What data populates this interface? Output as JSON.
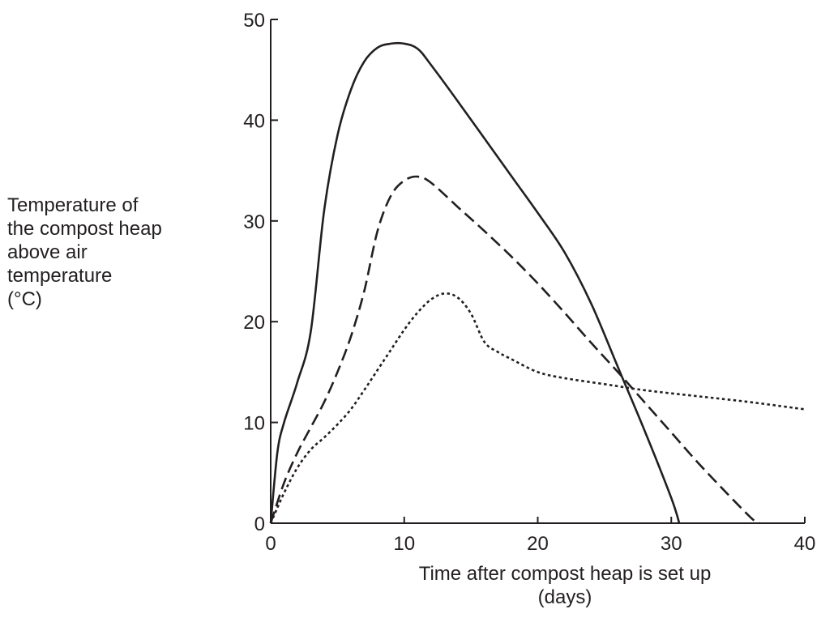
{
  "chart_data": {
    "type": "line",
    "ylabel_lines": [
      "Temperature of",
      "the compost heap",
      "above air",
      "temperature",
      "(°C)"
    ],
    "xlabel_lines": [
      "Time after compost heap is set up",
      "(days)"
    ],
    "xlim": [
      0,
      40
    ],
    "ylim": [
      0,
      50
    ],
    "xticks": [
      0,
      10,
      20,
      30,
      40
    ],
    "yticks": [
      0,
      10,
      20,
      30,
      40,
      50
    ],
    "grid": false,
    "series": [
      {
        "style": "solid",
        "x": [
          0,
          0.5,
          1,
          2,
          3,
          4,
          5,
          6,
          7,
          8,
          9,
          10,
          11,
          12,
          14,
          16,
          18,
          20,
          22,
          24,
          26,
          28,
          30,
          30.6
        ],
        "y": [
          0,
          7,
          10,
          14,
          19,
          31,
          38.5,
          43,
          45.8,
          47.2,
          47.6,
          47.6,
          47.1,
          45.5,
          41.9,
          38.2,
          34.5,
          30.8,
          26.9,
          21.8,
          15.5,
          9.2,
          2.5,
          0
        ]
      },
      {
        "style": "dashed",
        "x": [
          0,
          1,
          2,
          3,
          4,
          5,
          6,
          7,
          8,
          9,
          10,
          11,
          12,
          14,
          16,
          18,
          20,
          22,
          24,
          26,
          28,
          30,
          32,
          34,
          36,
          36.6
        ],
        "y": [
          0,
          4,
          7,
          9.5,
          12,
          15,
          18.5,
          23,
          29,
          32.5,
          34,
          34.4,
          33.8,
          31.4,
          29,
          26.5,
          23.8,
          20.9,
          17.9,
          15,
          12,
          9,
          6,
          3.2,
          0.5,
          0
        ]
      },
      {
        "style": "dotted",
        "x": [
          0,
          1,
          2,
          3,
          4,
          5,
          6,
          7,
          8,
          9,
          10,
          11,
          12,
          13,
          14,
          15,
          16,
          17,
          18,
          20,
          22,
          25,
          28,
          32,
          36,
          40
        ],
        "y": [
          0,
          3,
          5.5,
          7.3,
          8.5,
          9.8,
          11.3,
          13.2,
          15.2,
          17.2,
          19.2,
          20.9,
          22.2,
          22.8,
          22.4,
          20.8,
          18,
          17,
          16.3,
          15,
          14.4,
          13.8,
          13.2,
          12.6,
          12,
          11.3
        ]
      }
    ]
  }
}
